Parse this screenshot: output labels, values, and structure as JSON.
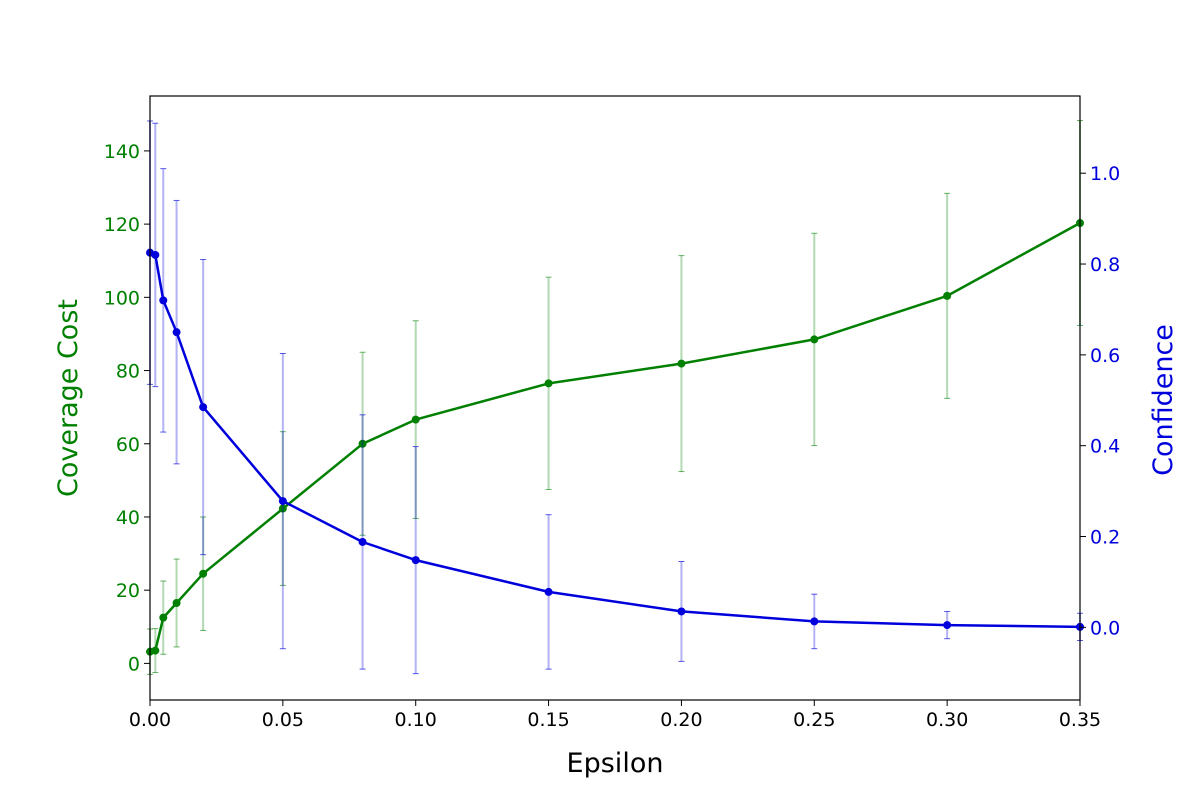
{
  "chart_data": {
    "type": "line",
    "title": "",
    "xlabel": "Epsilon",
    "ylabel_left": "Coverage Cost",
    "ylabel_right": "Confidence",
    "xlim": [
      0,
      0.35
    ],
    "ylim_left": [
      -10,
      155
    ],
    "ylim_right": [
      -0.16,
      1.17
    ],
    "x_ticks": [
      {
        "value": 0.0,
        "label": "0.00"
      },
      {
        "value": 0.05,
        "label": "0.05"
      },
      {
        "value": 0.1,
        "label": "0.10"
      },
      {
        "value": 0.15,
        "label": "0.15"
      },
      {
        "value": 0.2,
        "label": "0.20"
      },
      {
        "value": 0.25,
        "label": "0.25"
      },
      {
        "value": 0.3,
        "label": "0.30"
      },
      {
        "value": 0.35,
        "label": "0.35"
      }
    ],
    "y_left_ticks": [
      {
        "value": 0,
        "label": "0"
      },
      {
        "value": 20,
        "label": "20"
      },
      {
        "value": 40,
        "label": "40"
      },
      {
        "value": 60,
        "label": "60"
      },
      {
        "value": 80,
        "label": "80"
      },
      {
        "value": 100,
        "label": "100"
      },
      {
        "value": 120,
        "label": "120"
      },
      {
        "value": 140,
        "label": "140"
      }
    ],
    "y_right_ticks": [
      {
        "value": 0.0,
        "label": "0.0"
      },
      {
        "value": 0.2,
        "label": "0.2"
      },
      {
        "value": 0.4,
        "label": "0.4"
      },
      {
        "value": 0.6,
        "label": "0.6"
      },
      {
        "value": 0.8,
        "label": "0.8"
      },
      {
        "value": 1.0,
        "label": "1.0"
      }
    ],
    "grid": false,
    "series": [
      {
        "axis": "left",
        "color": "#008000",
        "x": [
          0.0,
          0.002,
          0.005,
          0.01,
          0.02,
          0.05,
          0.08,
          0.1,
          0.15,
          0.2,
          0.25,
          0.3,
          0.35
        ],
        "y": [
          3.2,
          3.5,
          12.5,
          16.5,
          24.5,
          42.3,
          60.0,
          66.6,
          76.5,
          81.9,
          88.5,
          100.4,
          120.3
        ],
        "err": [
          6.2,
          6.0,
          10.0,
          12.0,
          15.5,
          21.0,
          25.0,
          27.0,
          29.0,
          29.5,
          29.0,
          28.0,
          28.0
        ]
      },
      {
        "axis": "right",
        "color": "#0000dd",
        "x": [
          0.0,
          0.002,
          0.005,
          0.01,
          0.02,
          0.05,
          0.08,
          0.1,
          0.15,
          0.2,
          0.25,
          0.3,
          0.35
        ],
        "y": [
          0.825,
          0.82,
          0.72,
          0.65,
          0.485,
          0.278,
          0.188,
          0.148,
          0.078,
          0.035,
          0.013,
          0.005,
          0.001
        ],
        "err": [
          0.29,
          0.29,
          0.29,
          0.29,
          0.325,
          0.325,
          0.28,
          0.25,
          0.17,
          0.11,
          0.06,
          0.03,
          0.03
        ]
      }
    ]
  }
}
